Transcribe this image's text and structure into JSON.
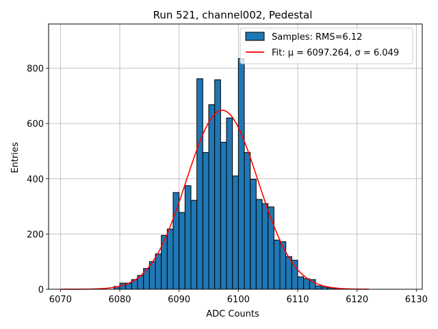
{
  "chart_data": {
    "type": "bar",
    "title": "Run 521, channel002, Pedestal",
    "xlabel": "ADC Counts",
    "ylabel": "Entries",
    "xlim": [
      6068,
      6131
    ],
    "ylim": [
      0,
      960
    ],
    "xticks": [
      6070,
      6080,
      6090,
      6100,
      6110,
      6120,
      6130
    ],
    "yticks": [
      0,
      200,
      400,
      600,
      800
    ],
    "grid": true,
    "legend_position": "top-right",
    "histogram": {
      "name": "Samples: RMS=6.12",
      "color": "#1f77b4",
      "bin_edges": [
        6079,
        6080,
        6081,
        6082,
        6083,
        6084,
        6085,
        6086,
        6087,
        6088,
        6089,
        6090,
        6091,
        6092,
        6093,
        6094,
        6095,
        6096,
        6097,
        6098,
        6099,
        6100,
        6101,
        6102,
        6103,
        6104,
        6105,
        6106,
        6107,
        6108,
        6109,
        6110,
        6111,
        6112,
        6113,
        6114,
        6115,
        6116,
        6117,
        6118,
        6119,
        6120
      ],
      "counts": [
        10,
        22,
        22,
        35,
        50,
        75,
        100,
        128,
        195,
        218,
        350,
        278,
        375,
        322,
        762,
        495,
        668,
        758,
        532,
        620,
        410,
        835,
        495,
        398,
        325,
        310,
        298,
        178,
        172,
        118,
        105,
        45,
        38,
        35,
        12,
        8,
        5,
        3,
        2,
        1,
        1
      ]
    },
    "fit": {
      "name": "Fit: μ = 6097.264, σ = 6.049",
      "color": "#ff0000",
      "mu": 6097.264,
      "sigma": 6.049,
      "amplitude": 648,
      "x_range": [
        6070,
        6122
      ]
    }
  }
}
